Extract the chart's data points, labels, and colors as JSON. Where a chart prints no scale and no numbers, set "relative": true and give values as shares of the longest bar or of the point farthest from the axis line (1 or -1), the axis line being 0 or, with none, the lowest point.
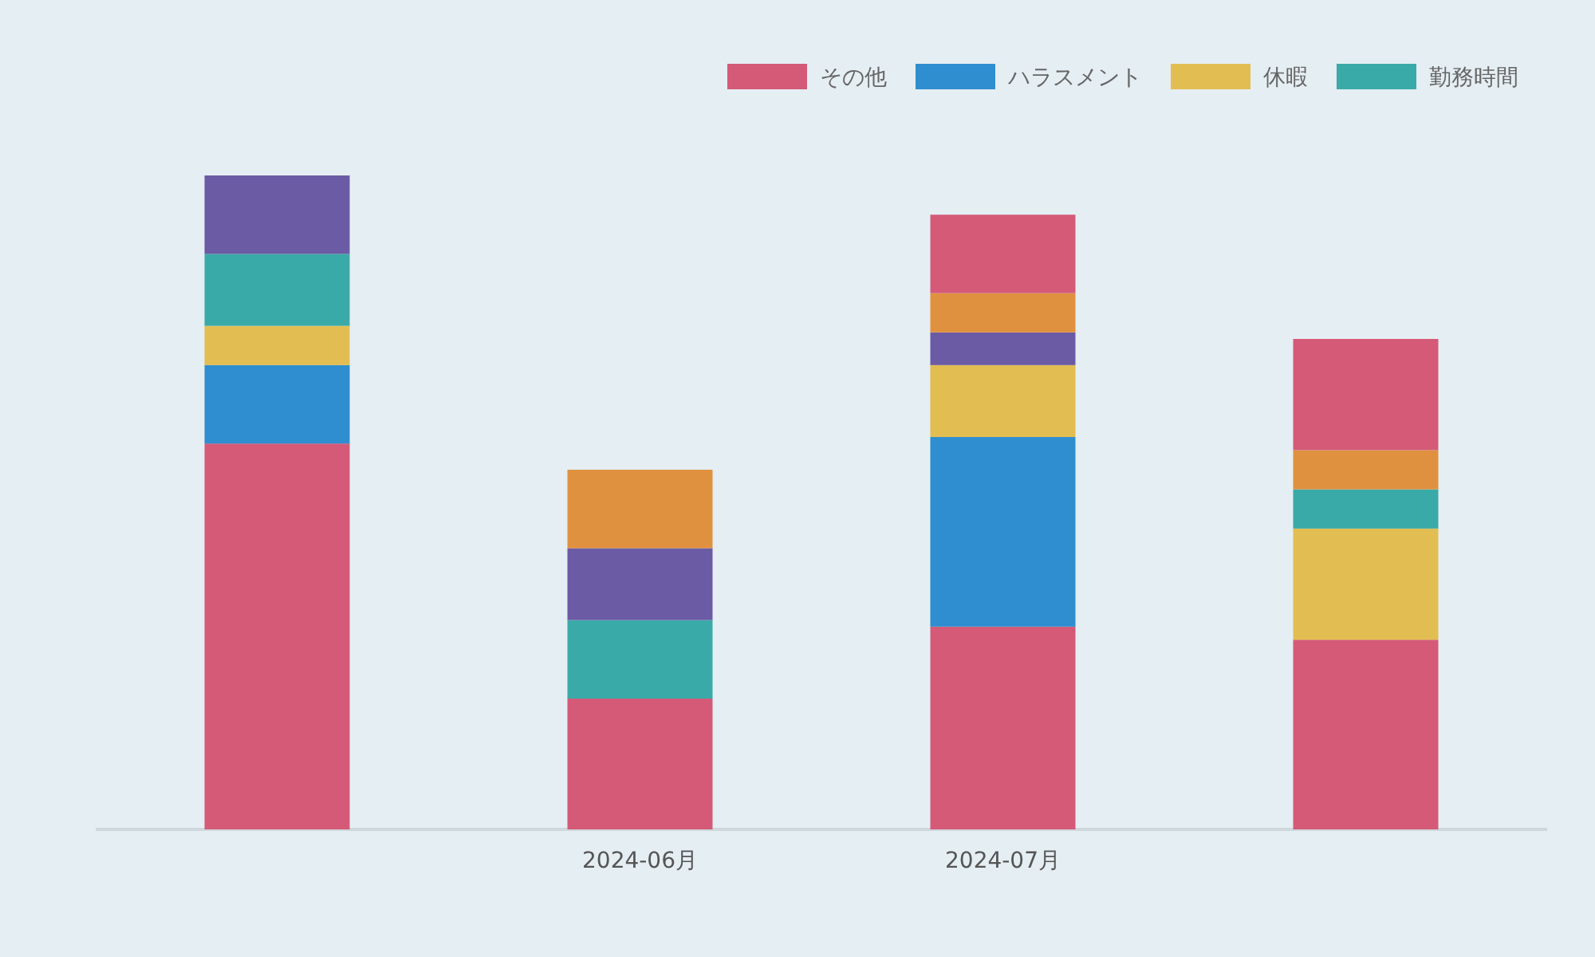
{
  "chart_data": {
    "type": "bar",
    "stacked": true,
    "relative": true,
    "legend": "top right",
    "categories": [
      null,
      "2024-06月",
      "2024-07月",
      null
    ],
    "series": [
      {
        "name": "その他",
        "color": "#d45a78",
        "values": [
          0.59,
          0.2,
          0.31,
          0.29
        ]
      },
      {
        "name": "ハラスメント",
        "color": "#2f8ecf",
        "values": [
          0.12,
          0,
          0.29,
          0
        ]
      },
      {
        "name": "休暇",
        "color": "#e2be52",
        "values": [
          0.06,
          0,
          0.11,
          0.17
        ]
      },
      {
        "name": "勤務時間",
        "color": "#3aaaa8",
        "values": [
          0.11,
          0.12,
          0,
          0.06
        ]
      },
      {
        "color": "#6b5ba5",
        "values": [
          0.12,
          0.11,
          0.05,
          0
        ]
      },
      {
        "color": "#e0913f",
        "values": [
          0,
          0.12,
          0.06,
          0.06
        ]
      },
      {
        "color": "#d45a78",
        "values": [
          0,
          0,
          0.12,
          0.17
        ]
      }
    ]
  }
}
